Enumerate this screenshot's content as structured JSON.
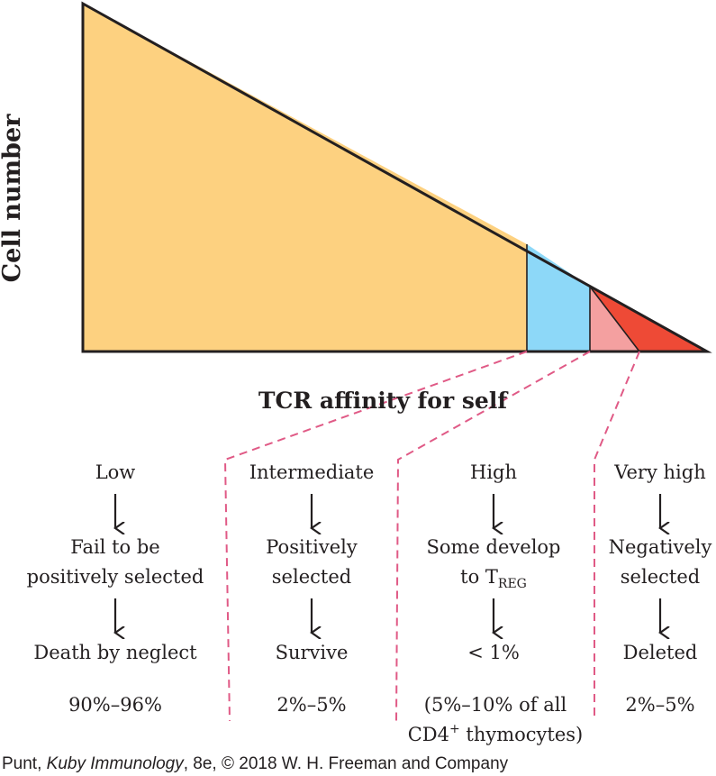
{
  "y_axis_label": "Cell number",
  "x_axis_label": "TCR affinity for self",
  "colors": {
    "low": "#fdd180",
    "intermediate": "#8dd8f8",
    "high": "#f4a0a0",
    "very_high": "#ee4a36",
    "outline": "#231f20",
    "dashed": "#e05a86"
  },
  "columns": [
    {
      "heading": "Low",
      "outcome": [
        "Fail to be",
        "positively selected"
      ],
      "result": "Death by neglect",
      "percent": [
        "90%–96%"
      ]
    },
    {
      "heading": "Intermediate",
      "outcome": [
        "Positively",
        "selected"
      ],
      "result": "Survive",
      "percent": [
        "2%–5%"
      ]
    },
    {
      "heading": "High",
      "outcome_line1": "Some develop",
      "outcome_line2_prefix": "to T",
      "outcome_line2_sub": "REG",
      "result": "< 1%",
      "percent_line1": "(5%–10% of all",
      "percent_line2_prefix": "CD4",
      "percent_line2_sup": "+",
      "percent_line2_suffix": " thymocytes)"
    },
    {
      "heading": "Very high",
      "outcome": [
        "Negatively",
        "selected"
      ],
      "result": "Deleted",
      "percent": [
        "2%–5%"
      ]
    }
  ],
  "caption": {
    "prefix": "Punt, ",
    "book": "Kuby Immunology",
    "suffix": ", 8e, © 2018 W. H. Freeman and Company"
  }
}
